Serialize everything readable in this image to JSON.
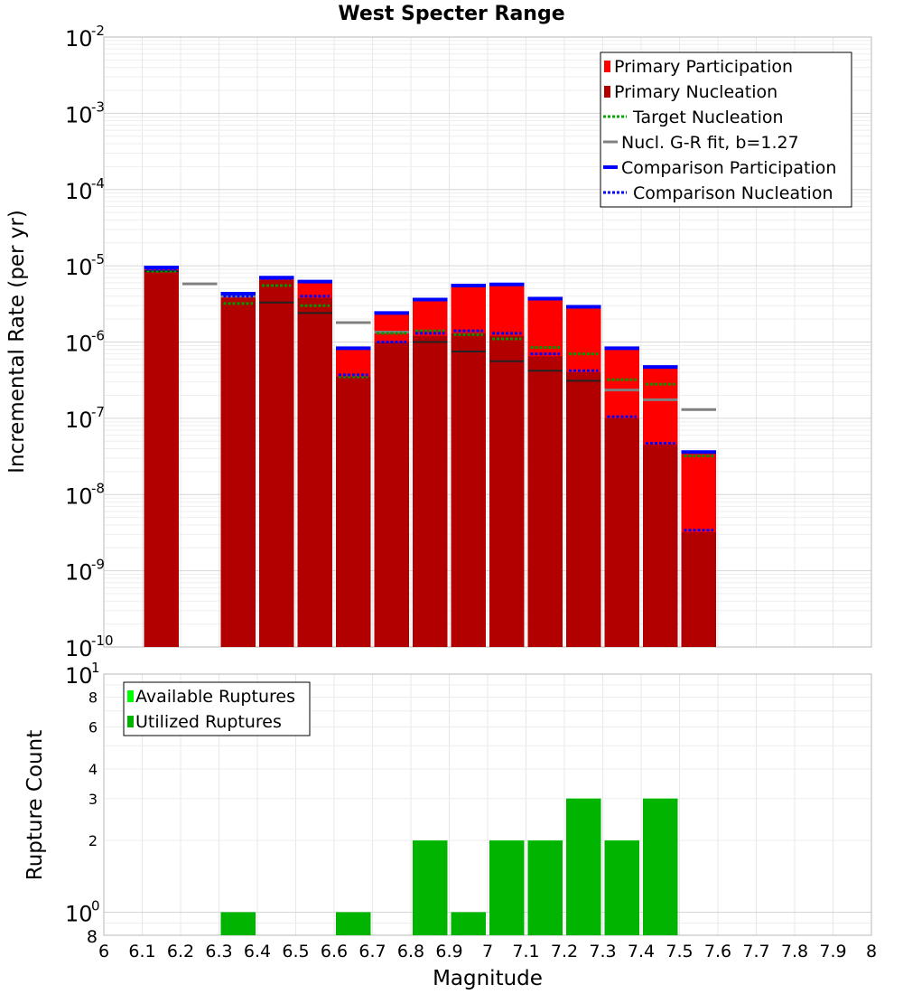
{
  "chart_data": [
    {
      "type": "bar",
      "title": "West Specter Range",
      "ylabel": "Incremental Rate (per yr)",
      "yscale": "log",
      "ylim": [
        1e-10,
        0.01
      ],
      "xlim": [
        6,
        8
      ],
      "y_tick_labels": [
        {
          "base": "10",
          "exp": "-2"
        },
        {
          "base": "10",
          "exp": "-3"
        },
        {
          "base": "10",
          "exp": "-4"
        },
        {
          "base": "10",
          "exp": "-5"
        },
        {
          "base": "10",
          "exp": "-6"
        },
        {
          "base": "10",
          "exp": "-7"
        },
        {
          "base": "10",
          "exp": "-8"
        },
        {
          "base": "10",
          "exp": "-9"
        },
        {
          "base": "10",
          "exp": "-10"
        }
      ],
      "legend": {
        "placement": "top-right",
        "entries": [
          {
            "label": "Primary Participation",
            "color": "#ff0000",
            "style": "bar"
          },
          {
            "label": "Primary Nucleation",
            "color": "#b20000",
            "style": "bar"
          },
          {
            "label": "Target Nucleation",
            "color": "#00aa00",
            "style": "dotted"
          },
          {
            "label": "Nucl. G-R fit, b=1.27",
            "color": "#808080",
            "style": "line"
          },
          {
            "label": "Comparison Participation",
            "color": "#0000ff",
            "style": "line"
          },
          {
            "label": "Comparison Nucleation",
            "color": "#0000ff",
            "style": "dotted"
          }
        ]
      },
      "colors": {
        "participation": "#ff0000",
        "nucleation": "#b20000",
        "target": "#009900",
        "gr_fit": "#808080",
        "comparison": "#0000ff",
        "bar_inner_line": "#222222"
      },
      "bins": [
        {
          "x": 6.15,
          "participation": 9.5e-06,
          "nucleation": 8.5e-06,
          "target": 8.5e-06,
          "comp_part": 9.5e-06,
          "comp_nucl": 9e-06,
          "gr_fit": 8.5e-06
        },
        {
          "x": 6.25,
          "gr_fit": 5.8e-06
        },
        {
          "x": 6.35,
          "participation": 4.3e-06,
          "nucleation": 3.8e-06,
          "target": 3.2e-06,
          "comp_part": 4.3e-06,
          "comp_nucl": 4e-06,
          "gr_fit": 4e-06
        },
        {
          "x": 6.45,
          "participation": 7e-06,
          "nucleation": 6.5e-06,
          "target": 5.5e-06,
          "comp_part": 7e-06,
          "comp_nucl": 6.8e-06,
          "gr_fit": 3.3e-06
        },
        {
          "x": 6.55,
          "participation": 6.2e-06,
          "nucleation": 3.8e-06,
          "target": 3e-06,
          "comp_part": 6.2e-06,
          "comp_nucl": 4e-06,
          "gr_fit": 2.4e-06
        },
        {
          "x": 6.65,
          "participation": 8.3e-07,
          "nucleation": 3.5e-07,
          "target": 3.5e-07,
          "comp_part": 8.3e-07,
          "comp_nucl": 3.7e-07,
          "gr_fit": 1.8e-06
        },
        {
          "x": 6.75,
          "participation": 2.4e-06,
          "nucleation": 1e-06,
          "target": 1.3e-06,
          "comp_part": 2.4e-06,
          "comp_nucl": 1e-06,
          "gr_fit": 1.35e-06
        },
        {
          "x": 6.85,
          "participation": 3.6e-06,
          "nucleation": 1.2e-06,
          "target": 1.4e-06,
          "comp_part": 3.6e-06,
          "comp_nucl": 1.3e-06,
          "gr_fit": 1e-06
        },
        {
          "x": 6.95,
          "participation": 5.5e-06,
          "nucleation": 1.3e-06,
          "target": 1.25e-06,
          "comp_part": 5.5e-06,
          "comp_nucl": 1.4e-06,
          "gr_fit": 7.5e-07
        },
        {
          "x": 7.05,
          "participation": 5.7e-06,
          "nucleation": 1.2e-06,
          "target": 1.1e-06,
          "comp_part": 5.7e-06,
          "comp_nucl": 1.3e-06,
          "gr_fit": 5.6e-07
        },
        {
          "x": 7.15,
          "participation": 3.7e-06,
          "nucleation": 6.5e-07,
          "target": 8.5e-07,
          "comp_part": 3.7e-06,
          "comp_nucl": 7e-07,
          "gr_fit": 4.2e-07
        },
        {
          "x": 7.25,
          "participation": 2.9e-06,
          "nucleation": 4e-07,
          "target": 7e-07,
          "comp_part": 2.9e-06,
          "comp_nucl": 4.2e-07,
          "gr_fit": 3.1e-07
        },
        {
          "x": 7.35,
          "participation": 8.3e-07,
          "nucleation": 1e-07,
          "target": 3.2e-07,
          "comp_part": 8.3e-07,
          "comp_nucl": 1.05e-07,
          "gr_fit": 2.35e-07
        },
        {
          "x": 7.45,
          "participation": 4.7e-07,
          "nucleation": 4.5e-08,
          "target": 2.8e-07,
          "comp_part": 4.7e-07,
          "comp_nucl": 4.7e-08,
          "gr_fit": 1.75e-07
        },
        {
          "x": 7.55,
          "participation": 3.6e-08,
          "nucleation": 3.2e-09,
          "target": 3.2e-08,
          "comp_part": 3.6e-08,
          "comp_nucl": 3.4e-09,
          "gr_fit": 1.3e-07
        }
      ]
    },
    {
      "type": "bar",
      "ylabel": "Rupture Count",
      "xlabel": "Magnitude",
      "yscale": "log",
      "ylim": [
        0.8,
        10
      ],
      "xlim": [
        6,
        8
      ],
      "x_ticks": [
        "6",
        "6.1",
        "6.2",
        "6.3",
        "6.4",
        "6.5",
        "6.6",
        "6.7",
        "6.8",
        "6.9",
        "7",
        "7.1",
        "7.2",
        "7.3",
        "7.4",
        "7.5",
        "7.6",
        "7.7",
        "7.8",
        "7.9",
        "8"
      ],
      "y_minor_ticks": [
        {
          "v": 8,
          "label": "8"
        },
        {
          "v": 6,
          "label": "6"
        },
        {
          "v": 4,
          "label": "4"
        },
        {
          "v": 3,
          "label": "3"
        },
        {
          "v": 2,
          "label": "2"
        },
        {
          "v": 0.8,
          "label": "8"
        }
      ],
      "y_major_ticks": [
        {
          "v": 10,
          "base": "10",
          "exp": "1"
        },
        {
          "v": 1,
          "base": "10",
          "exp": "0"
        }
      ],
      "legend": {
        "placement": "top-left",
        "entries": [
          {
            "label": "Available Ruptures",
            "color": "#00ff00"
          },
          {
            "label": "Utilized Ruptures",
            "color": "#00b400"
          }
        ]
      },
      "colors": {
        "available": "#00ff00",
        "utilized": "#00b400"
      },
      "bins": [
        {
          "x": 6.35,
          "available": 1,
          "utilized": 1
        },
        {
          "x": 6.65,
          "available": 1,
          "utilized": 1
        },
        {
          "x": 6.85,
          "available": 2,
          "utilized": 2
        },
        {
          "x": 6.95,
          "available": 1,
          "utilized": 1
        },
        {
          "x": 7.05,
          "available": 2,
          "utilized": 2
        },
        {
          "x": 7.15,
          "available": 2,
          "utilized": 2
        },
        {
          "x": 7.25,
          "available": 3,
          "utilized": 3
        },
        {
          "x": 7.35,
          "available": 2,
          "utilized": 2
        },
        {
          "x": 7.45,
          "available": 3,
          "utilized": 3
        }
      ]
    }
  ]
}
